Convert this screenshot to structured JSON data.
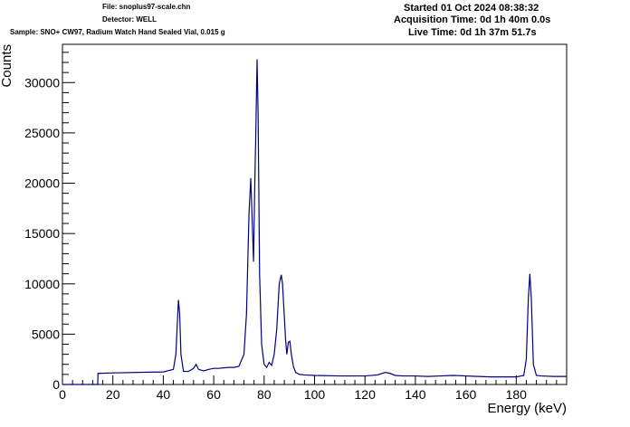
{
  "header": {
    "file": "File: snoplus97-scale.chn",
    "detector": "Detector: WELL",
    "sample": "Sample: SNO+ CW97, Radium Watch Hand Sealed Vial, 0.015 g",
    "started": "Started 01 Oct 2024 08:38:32",
    "acquisition": "Acquisition Time: 0d 1h 40m 0.0s",
    "live": "Live Time: 0d 1h 37m 51.7s"
  },
  "chart_data": {
    "type": "line",
    "title": "",
    "xlabel": "Energy (keV)",
    "ylabel": "Counts",
    "xlim": [
      0,
      200
    ],
    "ylim": [
      0,
      33800
    ],
    "x_ticks": [
      0,
      20,
      40,
      60,
      80,
      100,
      120,
      140,
      160,
      180
    ],
    "y_ticks": [
      0,
      5000,
      10000,
      15000,
      20000,
      25000,
      30000
    ],
    "line_color": "#000080",
    "grid": false,
    "series": [
      {
        "x": [
          0,
          14,
          14.1,
          20,
          30,
          40,
          44,
          45,
          46,
          46.5,
          47,
          48,
          50,
          52,
          53,
          54,
          56,
          58,
          60,
          62,
          64,
          66,
          68,
          70,
          72,
          73,
          74,
          74.7,
          75.3,
          75.8,
          76.3,
          76.7,
          77.2,
          77.6,
          78.2,
          79,
          80,
          81,
          82,
          83,
          84,
          85,
          86,
          86.8,
          87.3,
          88.5,
          89,
          89.6,
          90.2,
          90.8,
          91.6,
          92.5,
          94,
          96,
          100,
          110,
          120,
          125,
          128,
          130,
          132,
          135,
          140,
          145,
          150,
          155,
          160,
          165,
          170,
          175,
          180,
          183,
          184,
          184.8,
          185.4,
          186,
          186.8,
          188,
          190,
          195,
          200
        ],
        "y": [
          0,
          0,
          1100,
          1150,
          1200,
          1250,
          1500,
          3000,
          8400,
          7000,
          3000,
          1300,
          1300,
          1600,
          2000,
          1500,
          1350,
          1500,
          1600,
          1600,
          1650,
          1700,
          1700,
          1800,
          3000,
          7000,
          17000,
          20500,
          16000,
          12200,
          20000,
          25000,
          32300,
          27000,
          11000,
          4000,
          2000,
          1700,
          2200,
          1900,
          3000,
          5500,
          10000,
          10900,
          10000,
          4500,
          3000,
          4200,
          4300,
          3000,
          1800,
          1200,
          1000,
          950,
          900,
          850,
          850,
          950,
          1200,
          1100,
          900,
          850,
          850,
          800,
          850,
          900,
          850,
          800,
          750,
          750,
          750,
          900,
          2500,
          8500,
          11000,
          8500,
          2000,
          900,
          850,
          800,
          800
        ]
      }
    ]
  }
}
